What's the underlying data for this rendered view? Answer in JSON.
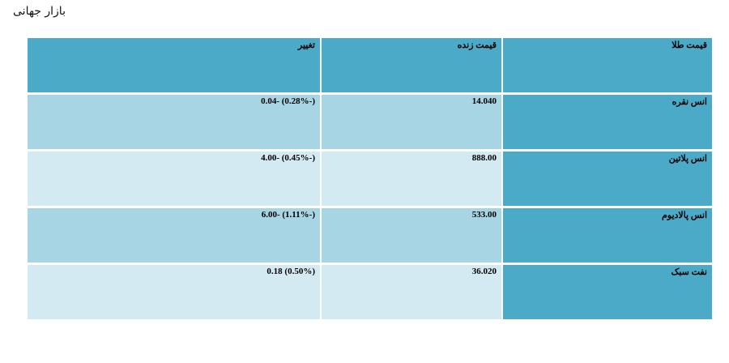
{
  "page": {
    "title": "بازار جهانی"
  },
  "table": {
    "headers": {
      "name": "قیمت طلا",
      "price": "قیمت زنده",
      "change": "تغییر"
    },
    "rows": [
      {
        "name": "انس نقره",
        "price": "14.040",
        "change": "(-0.28%) -0.04"
      },
      {
        "name": "انس پلاتین",
        "price": "888.00",
        "change": "(-0.45%) -4.00"
      },
      {
        "name": "انس پالادیوم",
        "price": "533.00",
        "change": "(-1.11%) -6.00"
      },
      {
        "name": "نفت سبک",
        "price": "36.020",
        "change": "(0.50%) 0.18"
      }
    ]
  },
  "colors": {
    "header": "#4aaac7",
    "row_dark": "#a7d5e3",
    "row_light": "#d4eaf2"
  }
}
